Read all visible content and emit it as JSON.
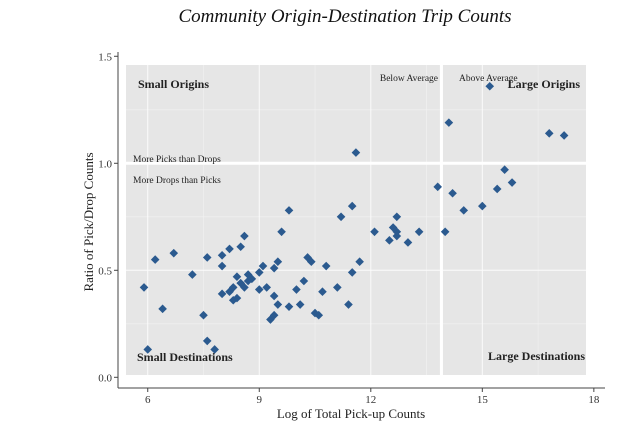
{
  "chart_data": {
    "type": "scatter",
    "title": "Community Origin-Destination Trip Counts",
    "xlabel": "Log of Total Pick-up Counts",
    "ylabel": "Ratio of Pick/Drop Counts",
    "xlim": [
      5.2,
      18.3
    ],
    "ylim": [
      -0.05,
      1.52
    ],
    "xticks": [
      6,
      9,
      12,
      15,
      18
    ],
    "yticks": [
      0.0,
      0.5,
      1.0,
      1.5
    ],
    "xtick_labels": [
      "6",
      "9",
      "12",
      "15",
      "18"
    ],
    "ytick_labels": [
      "0.0",
      "0.5",
      "1.0",
      "1.5"
    ],
    "grid": true,
    "marker_color": "#2b5a8f",
    "panel_color": "#e6e6e6",
    "reference_lines": {
      "x": 13.9,
      "y": 1.0
    },
    "annotations": {
      "small_origins": "Small Origins",
      "large_origins": "Large Origins",
      "small_destinations": "Small Destinations",
      "large_destinations": "Large Destinations",
      "below_average": "Below Average",
      "above_average": "Above Average",
      "more_picks": "More Picks than Drops",
      "more_drops": "More Drops than Picks"
    },
    "points": [
      [
        5.9,
        0.42
      ],
      [
        6.0,
        0.13
      ],
      [
        6.2,
        0.55
      ],
      [
        6.4,
        0.32
      ],
      [
        6.7,
        0.58
      ],
      [
        7.2,
        0.48
      ],
      [
        7.5,
        0.29
      ],
      [
        7.6,
        0.17
      ],
      [
        7.6,
        0.56
      ],
      [
        7.8,
        0.13
      ],
      [
        8.0,
        0.39
      ],
      [
        8.0,
        0.52
      ],
      [
        8.0,
        0.57
      ],
      [
        8.2,
        0.6
      ],
      [
        8.2,
        0.4
      ],
      [
        8.3,
        0.36
      ],
      [
        8.3,
        0.42
      ],
      [
        8.4,
        0.47
      ],
      [
        8.4,
        0.37
      ],
      [
        8.5,
        0.44
      ],
      [
        8.5,
        0.61
      ],
      [
        8.6,
        0.42
      ],
      [
        8.6,
        0.66
      ],
      [
        8.7,
        0.45
      ],
      [
        8.7,
        0.48
      ],
      [
        8.8,
        0.46
      ],
      [
        9.0,
        0.41
      ],
      [
        9.0,
        0.49
      ],
      [
        9.1,
        0.52
      ],
      [
        9.2,
        0.42
      ],
      [
        9.3,
        0.27
      ],
      [
        9.4,
        0.29
      ],
      [
        9.4,
        0.38
      ],
      [
        9.4,
        0.51
      ],
      [
        9.5,
        0.34
      ],
      [
        9.5,
        0.54
      ],
      [
        9.6,
        0.68
      ],
      [
        9.8,
        0.33
      ],
      [
        9.8,
        0.78
      ],
      [
        10.0,
        0.41
      ],
      [
        10.1,
        0.34
      ],
      [
        10.2,
        0.45
      ],
      [
        10.3,
        0.56
      ],
      [
        10.4,
        0.54
      ],
      [
        10.5,
        0.3
      ],
      [
        10.6,
        0.29
      ],
      [
        10.7,
        0.4
      ],
      [
        10.8,
        0.52
      ],
      [
        11.1,
        0.42
      ],
      [
        11.2,
        0.75
      ],
      [
        11.4,
        0.34
      ],
      [
        11.5,
        0.49
      ],
      [
        11.5,
        0.8
      ],
      [
        11.6,
        1.05
      ],
      [
        11.7,
        0.54
      ],
      [
        12.1,
        0.68
      ],
      [
        12.5,
        0.64
      ],
      [
        12.6,
        0.7
      ],
      [
        12.7,
        0.66
      ],
      [
        12.7,
        0.75
      ],
      [
        12.7,
        0.68
      ],
      [
        13.0,
        0.63
      ],
      [
        13.3,
        0.68
      ],
      [
        13.8,
        0.89
      ],
      [
        14.0,
        0.68
      ],
      [
        14.1,
        1.19
      ],
      [
        14.2,
        0.86
      ],
      [
        14.5,
        0.78
      ],
      [
        15.0,
        0.8
      ],
      [
        15.2,
        1.36
      ],
      [
        15.4,
        0.88
      ],
      [
        15.6,
        0.97
      ],
      [
        15.8,
        0.91
      ],
      [
        16.8,
        1.14
      ],
      [
        17.2,
        1.13
      ]
    ]
  }
}
